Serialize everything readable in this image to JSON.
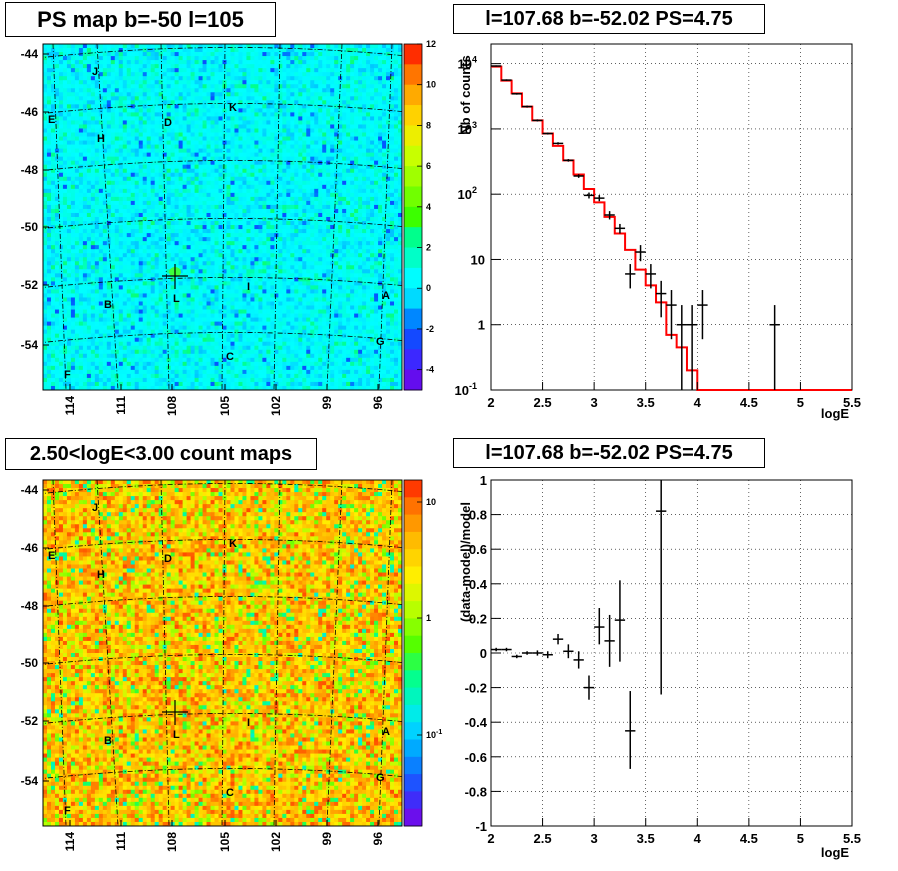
{
  "panels": {
    "map_top_title": "PS map b=-50 l=105",
    "spec_top_title": "l=107.68 b=-52.02 PS=4.75",
    "map_bottom_title": "2.50<logE<3.00 count maps",
    "spec_bottom_title": "l=107.68 b=-52.02 PS=4.75"
  },
  "colors": {
    "model_line": "#ff0000",
    "data_points": "#000000",
    "grid": "#000000"
  },
  "chart_data": [
    {
      "type": "heatmap",
      "title": "PS map b=-50 l=105",
      "y_ticks": [
        "-44",
        "-46",
        "-48",
        "-50",
        "-52",
        "-54"
      ],
      "x_ticks": [
        "114",
        "111",
        "108",
        "105",
        "102",
        "99",
        "96"
      ],
      "colorbar_ticks": [
        "12",
        "10",
        "8",
        "6",
        "4",
        "2",
        "0",
        "-2",
        "-4"
      ],
      "colorbar_range": [
        -5,
        12
      ],
      "source_labels": [
        "J",
        "E",
        "H",
        "D",
        "K",
        "L",
        "I",
        "B",
        "A",
        "G",
        "C",
        "F"
      ],
      "dominant_color": "#00ffff",
      "grid": true
    },
    {
      "type": "line",
      "title": "l=107.68 b=-52.02 PS=4.75",
      "xlabel": "logE",
      "ylabel": "Nb of counts",
      "yscale": "log",
      "xlim": [
        2,
        5.5
      ],
      "ylim": [
        0.1,
        20000
      ],
      "x_ticks": [
        "2",
        "2.5",
        "3",
        "3.5",
        "4",
        "4.5",
        "5",
        "5.5"
      ],
      "y_ticks": [
        "10^-1",
        "1",
        "10",
        "10^2",
        "10^3",
        "10^4"
      ],
      "grid": true,
      "model_bins": [
        2.0,
        2.1,
        2.2,
        2.3,
        2.4,
        2.5,
        2.6,
        2.7,
        2.8,
        2.9,
        3.0,
        3.1,
        3.2,
        3.3,
        3.4,
        3.5,
        3.6,
        3.7,
        3.8,
        3.9,
        4.0,
        4.1,
        5.5
      ],
      "model_values": [
        9000,
        5500,
        3500,
        2200,
        1350,
        850,
        550,
        330,
        200,
        120,
        75,
        45,
        25,
        14,
        7,
        4,
        2.2,
        0.7,
        0.45,
        0.2,
        0.1,
        0.1
      ],
      "data": [
        {
          "x": 2.05,
          "y": 9200,
          "lo": 9000,
          "hi": 9400
        },
        {
          "x": 2.15,
          "y": 5600,
          "lo": 5450,
          "hi": 5750
        },
        {
          "x": 2.25,
          "y": 3450,
          "lo": 3350,
          "hi": 3550
        },
        {
          "x": 2.35,
          "y": 2200,
          "lo": 2120,
          "hi": 2280
        },
        {
          "x": 2.45,
          "y": 1350,
          "lo": 1300,
          "hi": 1400
        },
        {
          "x": 2.55,
          "y": 850,
          "lo": 820,
          "hi": 880
        },
        {
          "x": 2.65,
          "y": 600,
          "lo": 575,
          "hi": 625
        },
        {
          "x": 2.75,
          "y": 330,
          "lo": 315,
          "hi": 345
        },
        {
          "x": 2.85,
          "y": 190,
          "lo": 178,
          "hi": 202
        },
        {
          "x": 2.95,
          "y": 96,
          "lo": 86,
          "hi": 106
        },
        {
          "x": 3.05,
          "y": 87,
          "lo": 78,
          "hi": 97
        },
        {
          "x": 3.15,
          "y": 48,
          "lo": 41,
          "hi": 55
        },
        {
          "x": 3.25,
          "y": 30,
          "lo": 25,
          "hi": 35
        },
        {
          "x": 3.35,
          "y": 6,
          "lo": 3.6,
          "hi": 8.5
        },
        {
          "x": 3.45,
          "y": 13,
          "lo": 9.4,
          "hi": 16.6
        },
        {
          "x": 3.55,
          "y": 6,
          "lo": 3.6,
          "hi": 8.5
        },
        {
          "x": 3.65,
          "y": 3,
          "lo": 1.3,
          "hi": 4.7
        },
        {
          "x": 3.75,
          "y": 2,
          "lo": 0.6,
          "hi": 3.4
        },
        {
          "x": 3.85,
          "y": 1,
          "lo": 0.1,
          "hi": 2
        },
        {
          "x": 3.95,
          "y": 1,
          "lo": 0.1,
          "hi": 2
        },
        {
          "x": 4.05,
          "y": 2,
          "lo": 0.6,
          "hi": 3.4
        },
        {
          "x": 4.75,
          "y": 1,
          "lo": 0.1,
          "hi": 2
        }
      ]
    },
    {
      "type": "heatmap",
      "title": "2.50<logE<3.00 count maps",
      "y_ticks": [
        "-44",
        "-46",
        "-48",
        "-50",
        "-52",
        "-54"
      ],
      "x_ticks": [
        "114",
        "111",
        "108",
        "105",
        "102",
        "99",
        "96"
      ],
      "colorbar_ticks": [
        "10",
        "1",
        "10^-1"
      ],
      "colorbar_scale": "log",
      "source_labels": [
        "J",
        "E",
        "H",
        "D",
        "K",
        "L",
        "I",
        "B",
        "A",
        "G",
        "C",
        "F"
      ],
      "dominant_color": "#ffd200",
      "grid": true
    },
    {
      "type": "scatter",
      "title": "l=107.68 b=-52.02 PS=4.75",
      "xlabel": "logE",
      "ylabel": "(data-model)/model",
      "xlim": [
        2,
        5.5
      ],
      "ylim": [
        -1,
        1
      ],
      "x_ticks": [
        "2",
        "2.5",
        "3",
        "3.5",
        "4",
        "4.5",
        "5",
        "5.5"
      ],
      "y_ticks": [
        "-1",
        "-0.8",
        "-0.6",
        "-0.4",
        "-0.2",
        "0",
        "0.2",
        "0.4",
        "0.6",
        "0.8",
        "1"
      ],
      "grid": true,
      "data": [
        {
          "x": 2.05,
          "y": 0.02,
          "lo": 0.01,
          "hi": 0.03
        },
        {
          "x": 2.15,
          "y": 0.02,
          "lo": 0.01,
          "hi": 0.03
        },
        {
          "x": 2.25,
          "y": -0.02,
          "lo": -0.03,
          "hi": -0.01
        },
        {
          "x": 2.35,
          "y": 0.0,
          "lo": -0.01,
          "hi": 0.01
        },
        {
          "x": 2.45,
          "y": 0.0,
          "lo": -0.015,
          "hi": 0.015
        },
        {
          "x": 2.55,
          "y": -0.01,
          "lo": -0.03,
          "hi": 0.01
        },
        {
          "x": 2.65,
          "y": 0.08,
          "lo": 0.05,
          "hi": 0.11
        },
        {
          "x": 2.75,
          "y": 0.01,
          "lo": -0.03,
          "hi": 0.05
        },
        {
          "x": 2.85,
          "y": -0.04,
          "lo": -0.09,
          "hi": 0.01
        },
        {
          "x": 2.95,
          "y": -0.2,
          "lo": -0.27,
          "hi": -0.13
        },
        {
          "x": 3.05,
          "y": 0.15,
          "lo": 0.05,
          "hi": 0.26
        },
        {
          "x": 3.15,
          "y": 0.07,
          "lo": -0.08,
          "hi": 0.22
        },
        {
          "x": 3.25,
          "y": 0.19,
          "lo": -0.05,
          "hi": 0.42
        },
        {
          "x": 3.35,
          "y": -0.45,
          "lo": -0.67,
          "hi": -0.22
        },
        {
          "x": 3.65,
          "y": 0.82,
          "lo": -0.24,
          "hi": 1.0
        }
      ]
    }
  ]
}
